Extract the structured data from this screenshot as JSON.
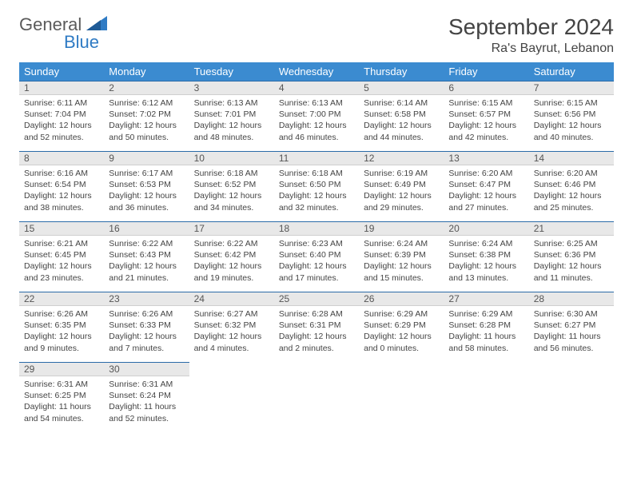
{
  "brand": {
    "part1": "General",
    "part2": "Blue"
  },
  "title": "September 2024",
  "location": "Ra's Bayrut, Lebanon",
  "colors": {
    "header_bg": "#3b8bd0",
    "header_fg": "#ffffff",
    "daynum_bg": "#e8e8e8",
    "rule": "#2b6ba8",
    "logo_blue": "#2f7bc4",
    "logo_gray": "#5a5a5a"
  },
  "weekdays": [
    "Sunday",
    "Monday",
    "Tuesday",
    "Wednesday",
    "Thursday",
    "Friday",
    "Saturday"
  ],
  "grid": {
    "rows": 5,
    "cols": 7,
    "start_offset": 0,
    "days_in_month": 30
  },
  "days": [
    {
      "n": 1,
      "sunrise": "6:11 AM",
      "sunset": "7:04 PM",
      "daylight": "12 hours and 52 minutes."
    },
    {
      "n": 2,
      "sunrise": "6:12 AM",
      "sunset": "7:02 PM",
      "daylight": "12 hours and 50 minutes."
    },
    {
      "n": 3,
      "sunrise": "6:13 AM",
      "sunset": "7:01 PM",
      "daylight": "12 hours and 48 minutes."
    },
    {
      "n": 4,
      "sunrise": "6:13 AM",
      "sunset": "7:00 PM",
      "daylight": "12 hours and 46 minutes."
    },
    {
      "n": 5,
      "sunrise": "6:14 AM",
      "sunset": "6:58 PM",
      "daylight": "12 hours and 44 minutes."
    },
    {
      "n": 6,
      "sunrise": "6:15 AM",
      "sunset": "6:57 PM",
      "daylight": "12 hours and 42 minutes."
    },
    {
      "n": 7,
      "sunrise": "6:15 AM",
      "sunset": "6:56 PM",
      "daylight": "12 hours and 40 minutes."
    },
    {
      "n": 8,
      "sunrise": "6:16 AM",
      "sunset": "6:54 PM",
      "daylight": "12 hours and 38 minutes."
    },
    {
      "n": 9,
      "sunrise": "6:17 AM",
      "sunset": "6:53 PM",
      "daylight": "12 hours and 36 minutes."
    },
    {
      "n": 10,
      "sunrise": "6:18 AM",
      "sunset": "6:52 PM",
      "daylight": "12 hours and 34 minutes."
    },
    {
      "n": 11,
      "sunrise": "6:18 AM",
      "sunset": "6:50 PM",
      "daylight": "12 hours and 32 minutes."
    },
    {
      "n": 12,
      "sunrise": "6:19 AM",
      "sunset": "6:49 PM",
      "daylight": "12 hours and 29 minutes."
    },
    {
      "n": 13,
      "sunrise": "6:20 AM",
      "sunset": "6:47 PM",
      "daylight": "12 hours and 27 minutes."
    },
    {
      "n": 14,
      "sunrise": "6:20 AM",
      "sunset": "6:46 PM",
      "daylight": "12 hours and 25 minutes."
    },
    {
      "n": 15,
      "sunrise": "6:21 AM",
      "sunset": "6:45 PM",
      "daylight": "12 hours and 23 minutes."
    },
    {
      "n": 16,
      "sunrise": "6:22 AM",
      "sunset": "6:43 PM",
      "daylight": "12 hours and 21 minutes."
    },
    {
      "n": 17,
      "sunrise": "6:22 AM",
      "sunset": "6:42 PM",
      "daylight": "12 hours and 19 minutes."
    },
    {
      "n": 18,
      "sunrise": "6:23 AM",
      "sunset": "6:40 PM",
      "daylight": "12 hours and 17 minutes."
    },
    {
      "n": 19,
      "sunrise": "6:24 AM",
      "sunset": "6:39 PM",
      "daylight": "12 hours and 15 minutes."
    },
    {
      "n": 20,
      "sunrise": "6:24 AM",
      "sunset": "6:38 PM",
      "daylight": "12 hours and 13 minutes."
    },
    {
      "n": 21,
      "sunrise": "6:25 AM",
      "sunset": "6:36 PM",
      "daylight": "12 hours and 11 minutes."
    },
    {
      "n": 22,
      "sunrise": "6:26 AM",
      "sunset": "6:35 PM",
      "daylight": "12 hours and 9 minutes."
    },
    {
      "n": 23,
      "sunrise": "6:26 AM",
      "sunset": "6:33 PM",
      "daylight": "12 hours and 7 minutes."
    },
    {
      "n": 24,
      "sunrise": "6:27 AM",
      "sunset": "6:32 PM",
      "daylight": "12 hours and 4 minutes."
    },
    {
      "n": 25,
      "sunrise": "6:28 AM",
      "sunset": "6:31 PM",
      "daylight": "12 hours and 2 minutes."
    },
    {
      "n": 26,
      "sunrise": "6:29 AM",
      "sunset": "6:29 PM",
      "daylight": "12 hours and 0 minutes."
    },
    {
      "n": 27,
      "sunrise": "6:29 AM",
      "sunset": "6:28 PM",
      "daylight": "11 hours and 58 minutes."
    },
    {
      "n": 28,
      "sunrise": "6:30 AM",
      "sunset": "6:27 PM",
      "daylight": "11 hours and 56 minutes."
    },
    {
      "n": 29,
      "sunrise": "6:31 AM",
      "sunset": "6:25 PM",
      "daylight": "11 hours and 54 minutes."
    },
    {
      "n": 30,
      "sunrise": "6:31 AM",
      "sunset": "6:24 PM",
      "daylight": "11 hours and 52 minutes."
    }
  ],
  "labels": {
    "sunrise_prefix": "Sunrise: ",
    "sunset_prefix": "Sunset: ",
    "daylight_prefix": "Daylight: "
  }
}
